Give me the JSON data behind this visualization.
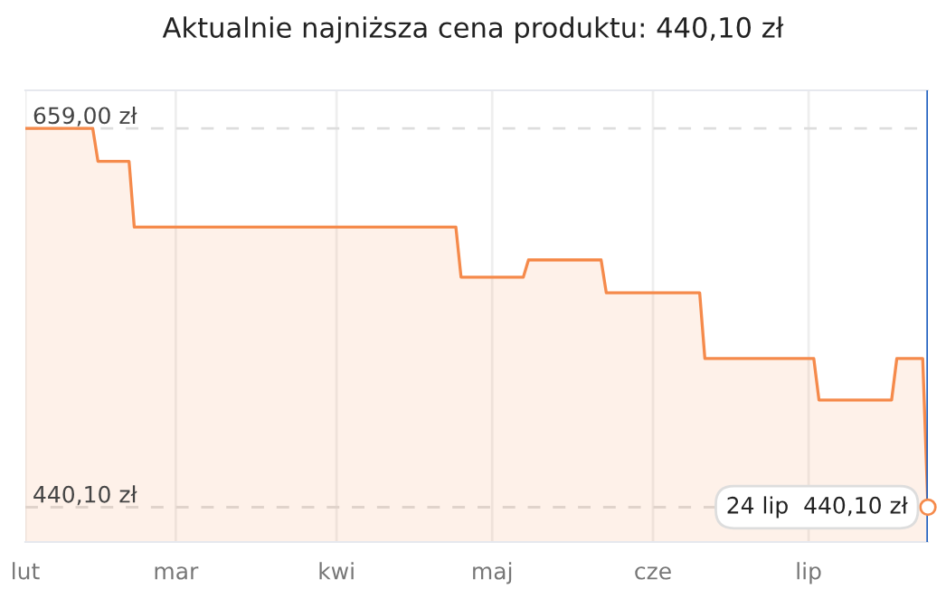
{
  "chart_data": {
    "type": "area",
    "title": "Aktualnie najniższa cena produktu: 440,10 zł",
    "color": "#f58a4b",
    "categories": [
      "lut",
      null,
      null,
      null,
      null,
      null,
      null,
      null,
      null,
      null,
      null,
      null,
      null,
      null,
      null,
      null,
      null,
      null,
      null,
      null,
      null,
      null,
      null,
      null,
      null,
      null,
      null,
      null,
      null,
      "mar",
      null,
      null,
      null,
      null,
      null,
      null,
      null,
      null,
      null,
      null,
      null,
      null,
      null,
      null,
      null,
      null,
      null,
      null,
      null,
      null,
      null,
      null,
      null,
      null,
      null,
      null,
      null,
      null,
      null,
      null,
      "kwi",
      null,
      null,
      null,
      null,
      null,
      null,
      null,
      null,
      null,
      null,
      null,
      null,
      null,
      null,
      null,
      null,
      null,
      null,
      null,
      null,
      null,
      null,
      null,
      null,
      null,
      null,
      null,
      null,
      null,
      "maj",
      null,
      null,
      null,
      null,
      null,
      null,
      null,
      null,
      null,
      null,
      null,
      null,
      null,
      null,
      null,
      null,
      null,
      null,
      null,
      null,
      null,
      null,
      null,
      null,
      null,
      null,
      null,
      null,
      null,
      null,
      "cze",
      null,
      null,
      null,
      null,
      null,
      null,
      null,
      null,
      null,
      null,
      null,
      null,
      null,
      null,
      null,
      null,
      null,
      null,
      null,
      null,
      null,
      null,
      null,
      null,
      null,
      null,
      null,
      null,
      null,
      "lip",
      null,
      null,
      null,
      null,
      null,
      null,
      null,
      null,
      null,
      null,
      null,
      null,
      null,
      null,
      null,
      null,
      null,
      null,
      null,
      null,
      null,
      null,
      null
    ],
    "values": [
      659,
      659,
      659,
      659,
      659,
      659,
      659,
      659,
      659,
      659,
      659,
      659,
      659,
      659,
      640,
      640,
      640,
      640,
      640,
      640,
      640,
      602,
      602,
      602,
      602,
      602,
      602,
      602,
      602,
      602,
      602,
      602,
      602,
      602,
      602,
      602,
      602,
      602,
      602,
      602,
      602,
      602,
      602,
      602,
      602,
      602,
      602,
      602,
      602,
      602,
      602,
      602,
      602,
      602,
      602,
      602,
      602,
      602,
      602,
      602,
      602,
      602,
      602,
      602,
      602,
      602,
      602,
      602,
      602,
      602,
      602,
      602,
      602,
      602,
      602,
      602,
      602,
      602,
      602,
      602,
      602,
      602,
      602,
      602,
      573,
      573,
      573,
      573,
      573,
      573,
      573,
      573,
      573,
      573,
      573,
      573,
      573,
      583,
      583,
      583,
      583,
      583,
      583,
      583,
      583,
      583,
      583,
      583,
      583,
      583,
      583,
      583,
      564,
      564,
      564,
      564,
      564,
      564,
      564,
      564,
      564,
      564,
      564,
      564,
      564,
      564,
      564,
      564,
      564,
      564,
      564,
      526,
      526,
      526,
      526,
      526,
      526,
      526,
      526,
      526,
      526,
      526,
      526,
      526,
      526,
      526,
      526,
      526,
      526,
      526,
      526,
      526,
      526,
      502,
      502,
      502,
      502,
      502,
      502,
      502,
      502,
      502,
      502,
      502,
      502,
      502,
      502,
      502,
      526,
      526,
      526,
      526,
      526,
      526,
      440.1
    ],
    "ylim": [
      420,
      681
    ],
    "yticks": [
      {
        "value": 440.1,
        "label": "440,10 zł"
      },
      {
        "value": 659,
        "label": "659,00 zł"
      }
    ],
    "grid": true,
    "marker": "none",
    "line_style": "solid",
    "annotations": [
      "24 lip  440,10 zł"
    ]
  }
}
